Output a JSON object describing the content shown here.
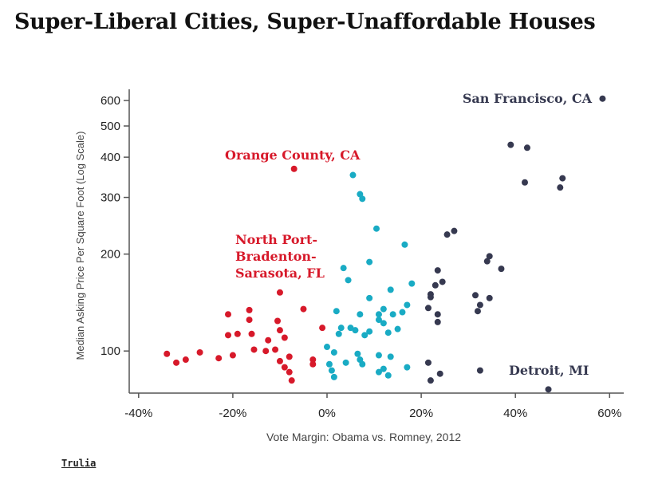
{
  "page": {
    "title": "Super-Liberal Cities, Super-Unaffordable Houses",
    "source_label": "Trulia"
  },
  "chart_data": {
    "type": "scatter",
    "title": "Super-Liberal Cities, Super-Unaffordable Houses",
    "xlabel": "Vote Margin: Obama vs. Romney, 2012",
    "ylabel": "Median Asking Price Per Square Foot (Log Scale)",
    "y_scale": "log",
    "xlim": [
      -42,
      63
    ],
    "ylim": [
      74,
      650
    ],
    "x_ticks": [
      -40,
      -20,
      0,
      20,
      40,
      60
    ],
    "x_tick_labels": [
      "-40%",
      "-20%",
      "0%",
      "20%",
      "40%",
      "60%"
    ],
    "y_ticks": [
      100,
      200,
      300,
      400,
      500,
      600
    ],
    "y_tick_labels": [
      "100",
      "200",
      "300",
      "400",
      "500",
      "600"
    ],
    "grid": false,
    "colors": {
      "red": "#d7192a",
      "teal": "#19abc4",
      "navy": "#363950"
    },
    "annotations": [
      {
        "text": "San Francisco, CA",
        "color": "#363950"
      },
      {
        "text": "Orange County, CA",
        "color": "#d7192a"
      },
      {
        "text": [
          "North Port-",
          "Bradenton-",
          "Sarasota, FL"
        ],
        "color": "#d7192a"
      },
      {
        "text": "Detroit, MI",
        "color": "#363950"
      }
    ],
    "series": [
      {
        "color": "red",
        "points": [
          [
            -34,
            98
          ],
          [
            -32,
            92
          ],
          [
            -30,
            94
          ],
          [
            -27,
            99
          ],
          [
            -23,
            95
          ],
          [
            -21,
            112
          ],
          [
            -21,
            130
          ],
          [
            -20,
            97
          ],
          [
            -19,
            113
          ],
          [
            -16.5,
            134
          ],
          [
            -16.5,
            125
          ],
          [
            -16,
            113
          ],
          [
            -15.5,
            101
          ],
          [
            -13,
            100
          ],
          [
            -12.5,
            108
          ],
          [
            -11,
            101
          ],
          [
            -10.5,
            124
          ],
          [
            -10,
            116
          ],
          [
            -10,
            93
          ],
          [
            -9,
            110
          ],
          [
            -9,
            89
          ],
          [
            -8,
            96
          ],
          [
            -8,
            86
          ],
          [
            -7.5,
            81
          ],
          [
            -10,
            152
          ],
          [
            -7,
            368
          ],
          [
            -5,
            135
          ],
          [
            -3,
            94
          ],
          [
            -3,
            91
          ],
          [
            -1,
            118
          ]
        ]
      },
      {
        "color": "teal",
        "points": [
          [
            5.5,
            352
          ],
          [
            7,
            307
          ],
          [
            7.5,
            297
          ],
          [
            10.5,
            240
          ],
          [
            16.5,
            214
          ],
          [
            3.5,
            181
          ],
          [
            9,
            189
          ],
          [
            4.5,
            166
          ],
          [
            18,
            162
          ],
          [
            13.5,
            155
          ],
          [
            9,
            146
          ],
          [
            12,
            135
          ],
          [
            11,
            130
          ],
          [
            14,
            130
          ],
          [
            16,
            132
          ],
          [
            17,
            139
          ],
          [
            2,
            133
          ],
          [
            7,
            130
          ],
          [
            11,
            125
          ],
          [
            12,
            122
          ],
          [
            3,
            118
          ],
          [
            5,
            118
          ],
          [
            6,
            116
          ],
          [
            8,
            112
          ],
          [
            9,
            115
          ],
          [
            13,
            114
          ],
          [
            15,
            117
          ],
          [
            2.5,
            113
          ],
          [
            0,
            103
          ],
          [
            1.5,
            99
          ],
          [
            6.5,
            98
          ],
          [
            7,
            94
          ],
          [
            11,
            97
          ],
          [
            13.5,
            96
          ],
          [
            0.5,
            91
          ],
          [
            4,
            92
          ],
          [
            1,
            87
          ],
          [
            11,
            86
          ],
          [
            12,
            88
          ],
          [
            13,
            84
          ],
          [
            17,
            89
          ],
          [
            1.5,
            83
          ],
          [
            7.5,
            91
          ]
        ]
      },
      {
        "color": "navy",
        "points": [
          [
            58.5,
            608
          ],
          [
            39,
            437
          ],
          [
            42.5,
            428
          ],
          [
            50,
            344
          ],
          [
            49.5,
            322
          ],
          [
            42,
            334
          ],
          [
            27,
            236
          ],
          [
            25.5,
            230
          ],
          [
            34.5,
            197
          ],
          [
            34,
            190
          ],
          [
            37,
            180
          ],
          [
            23.5,
            178
          ],
          [
            23,
            160
          ],
          [
            24.5,
            164
          ],
          [
            22,
            150
          ],
          [
            22,
            147
          ],
          [
            31.5,
            149
          ],
          [
            34.5,
            146
          ],
          [
            32.5,
            139
          ],
          [
            32,
            133
          ],
          [
            21.5,
            136
          ],
          [
            23.5,
            130
          ],
          [
            23.5,
            123
          ],
          [
            21.5,
            92
          ],
          [
            22,
            81
          ],
          [
            24,
            85
          ],
          [
            32.5,
            87
          ],
          [
            47,
            76
          ]
        ]
      }
    ]
  }
}
